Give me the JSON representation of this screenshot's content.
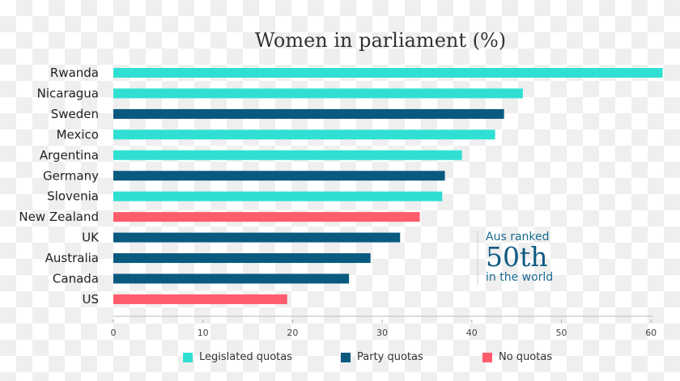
{
  "chart_data": {
    "type": "bar",
    "orientation": "horizontal",
    "title": "Women in parliament (%)",
    "categories": [
      "Rwanda",
      "Nicaragua",
      "Sweden",
      "Mexico",
      "Argentina",
      "Germany",
      "Slovenia",
      "New Zealand",
      "UK",
      "Australia",
      "Canada",
      "US"
    ],
    "values": [
      61.3,
      45.7,
      43.6,
      42.6,
      38.9,
      37.0,
      36.7,
      34.2,
      32.0,
      28.7,
      26.3,
      19.4
    ],
    "groups": [
      "legislated",
      "legislated",
      "party",
      "legislated",
      "legislated",
      "party",
      "legislated",
      "none",
      "party",
      "party",
      "party",
      "none"
    ],
    "xlim": [
      0,
      61.5
    ],
    "xticks": [
      0,
      10,
      20,
      30,
      40,
      50,
      60
    ],
    "grid": false,
    "legend": [
      {
        "key": "legislated",
        "name": "Legislated quotas",
        "color": "#2fe0d2"
      },
      {
        "key": "party",
        "name": "Party quotas",
        "color": "#0a5a80"
      },
      {
        "key": "none",
        "name": "No quotas",
        "color": "#ff5c6c"
      }
    ],
    "legend_position": "bottom",
    "annotation": {
      "line1": "Aus ranked",
      "line2": "50th",
      "line3": "in the world"
    }
  }
}
